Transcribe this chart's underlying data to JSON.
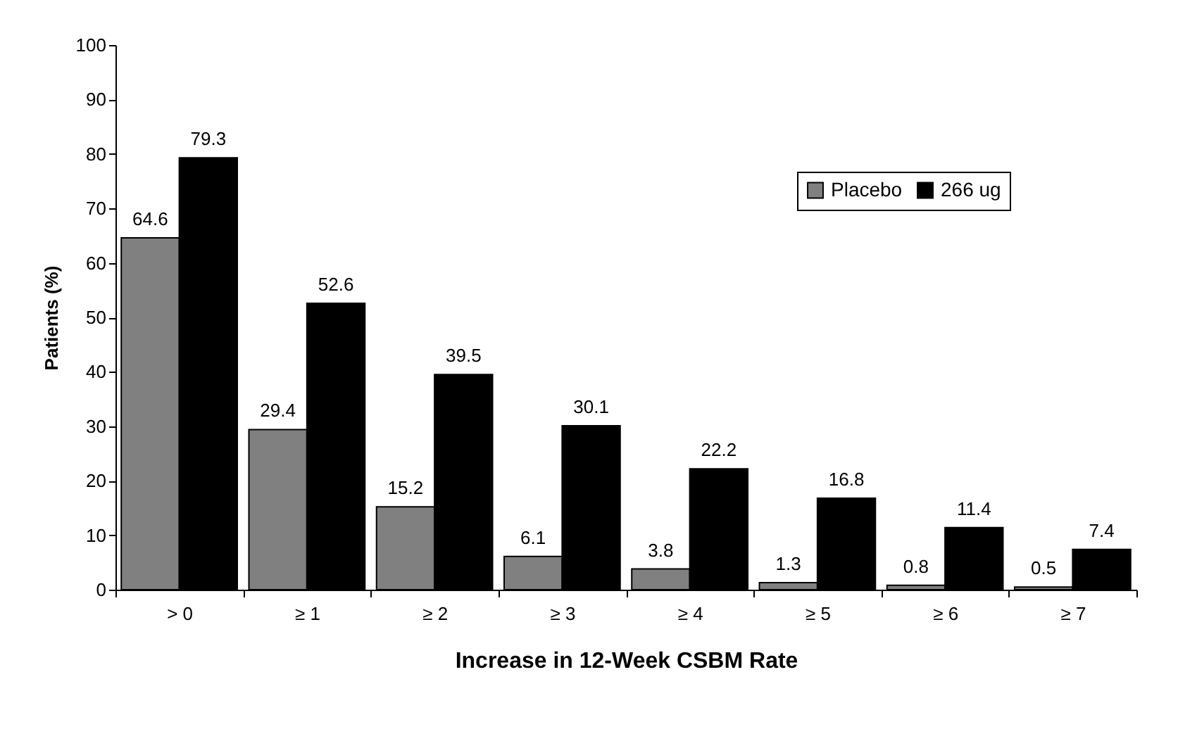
{
  "chart_data": {
    "type": "bar",
    "xlabel": "Increase in 12-Week CSBM Rate",
    "ylabel": "Patients (%)",
    "categories": [
      "> 0",
      "≥ 1",
      "≥ 2",
      "≥ 3",
      "≥ 4",
      "≥ 5",
      "≥ 6",
      "≥ 7"
    ],
    "series": [
      {
        "name": "Placebo",
        "color": "#808080",
        "values": [
          64.6,
          29.4,
          15.2,
          6.1,
          3.8,
          1.3,
          0.8,
          0.5
        ]
      },
      {
        "name": "266 ug",
        "color": "#000000",
        "values": [
          79.3,
          52.6,
          39.5,
          30.1,
          22.2,
          16.8,
          11.4,
          7.4
        ]
      }
    ],
    "ylim": [
      0,
      100
    ],
    "yticks": [
      0,
      10,
      20,
      30,
      40,
      50,
      60,
      70,
      80,
      90,
      100
    ],
    "grid": false,
    "legend": "top right",
    "data_labels": true
  }
}
